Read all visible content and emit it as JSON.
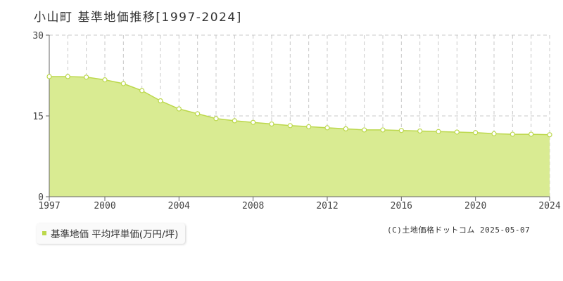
{
  "page": {
    "title": "小山町 基準地価推移[1997-2024]",
    "legend_label": "基準地価 平均坪単価(万円/坪)",
    "copyright": "(C)土地価格ドットコム 2025-05-07"
  },
  "colors": {
    "area_fill": "#d9eb92",
    "line": "#bcd84c",
    "marker_fill": "#ffffff",
    "grid": "#c8c8c8",
    "axis": "#666666"
  },
  "chart_data": {
    "type": "area",
    "title": "小山町 基準地価推移[1997-2024]",
    "xlabel": "",
    "ylabel": "",
    "xlim": [
      1997,
      2024
    ],
    "ylim": [
      0,
      30
    ],
    "x_ticks": [
      1997,
      2000,
      2004,
      2008,
      2012,
      2016,
      2020,
      2024
    ],
    "y_ticks": [
      0,
      15,
      30
    ],
    "grid": true,
    "legend_position": "bottom-left",
    "series": [
      {
        "name": "基準地価 平均坪単価(万円/坪)",
        "x": [
          1997,
          1998,
          1999,
          2000,
          2001,
          2002,
          2003,
          2004,
          2005,
          2006,
          2007,
          2008,
          2009,
          2010,
          2011,
          2012,
          2013,
          2014,
          2015,
          2016,
          2017,
          2018,
          2019,
          2020,
          2021,
          2022,
          2023,
          2024
        ],
        "values": [
          22.3,
          22.3,
          22.2,
          21.7,
          21.0,
          19.7,
          17.8,
          16.3,
          15.4,
          14.5,
          14.1,
          13.8,
          13.5,
          13.2,
          13.0,
          12.8,
          12.6,
          12.4,
          12.4,
          12.3,
          12.2,
          12.1,
          12.0,
          11.9,
          11.7,
          11.6,
          11.6,
          11.5
        ]
      }
    ]
  }
}
